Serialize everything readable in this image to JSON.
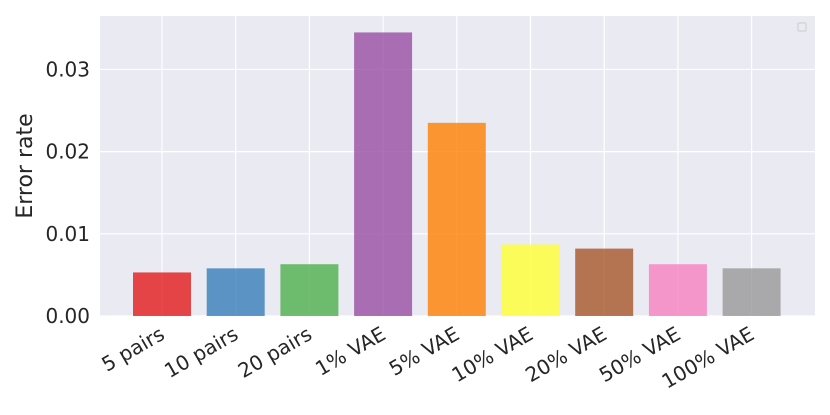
{
  "chart_data": {
    "type": "bar",
    "title": "",
    "xlabel": "",
    "ylabel": "Error rate",
    "categories": [
      "5 pairs",
      "10 pairs",
      "20 pairs",
      "1% VAE",
      "5% VAE",
      "10% VAE",
      "20% VAE",
      "50% VAE",
      "100% VAE"
    ],
    "values": [
      0.0053,
      0.0058,
      0.0063,
      0.0345,
      0.0235,
      0.0087,
      0.0082,
      0.0063,
      0.0058
    ],
    "colors": [
      "#e41a1c",
      "#377eb8",
      "#4daf4a",
      "#984ea3",
      "#ff7f00",
      "#ffff33",
      "#a65628",
      "#f781bf",
      "#999999"
    ],
    "ylim": [
      0,
      0.0365
    ],
    "yticks": [
      0.0,
      0.01,
      0.02,
      0.03
    ],
    "ytick_labels": [
      "0.00",
      "0.01",
      "0.02",
      "0.03"
    ],
    "grid": true,
    "legend": "top-right (empty)",
    "background": "#eaeaf2"
  }
}
